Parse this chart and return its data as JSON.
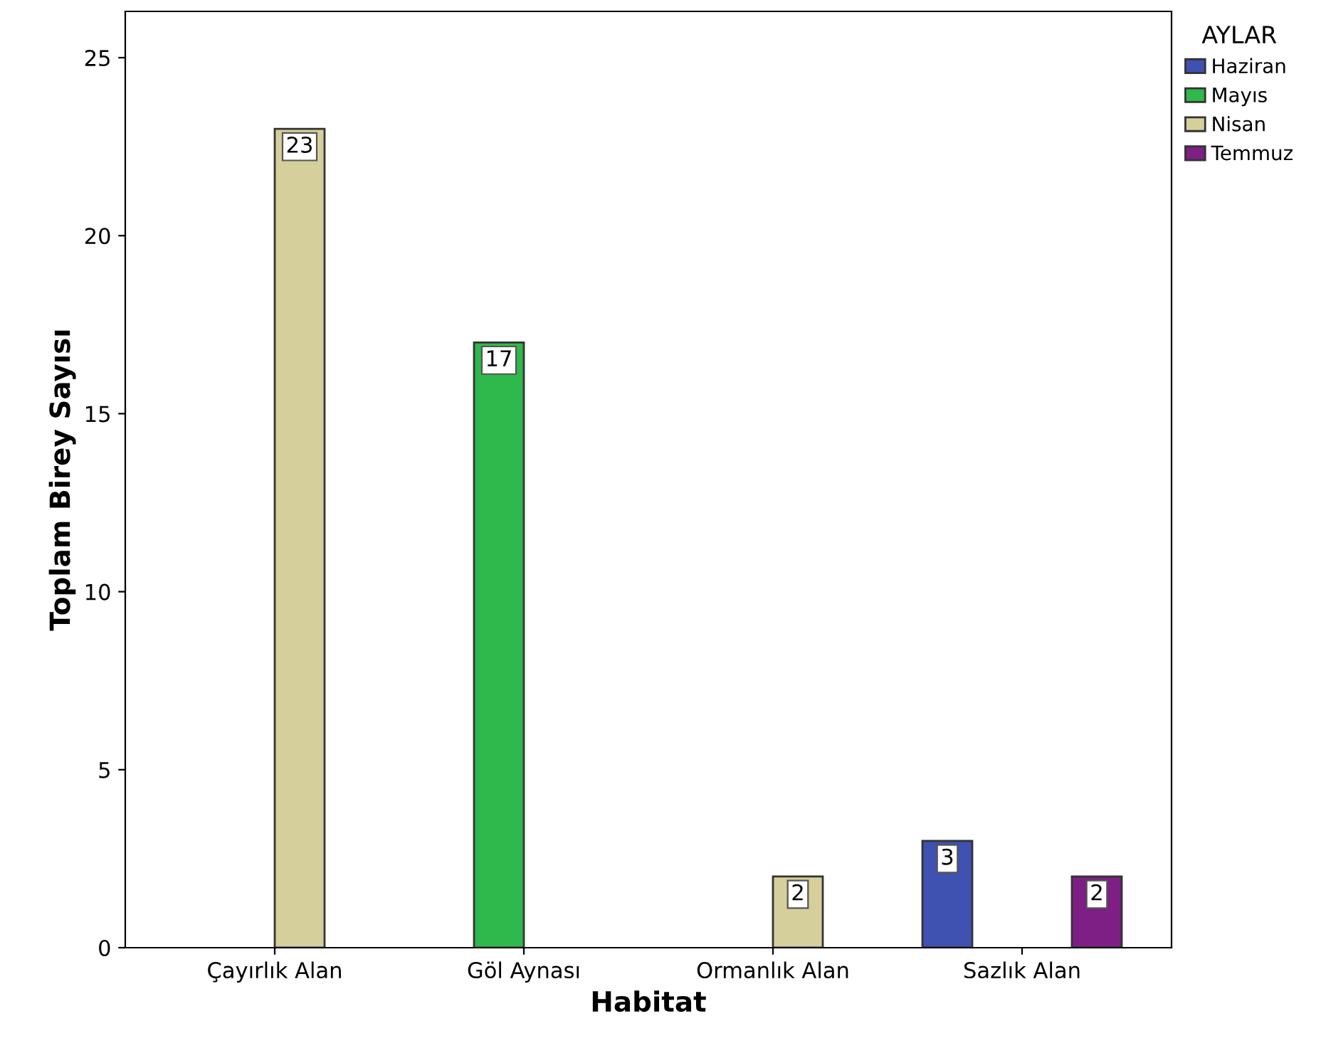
{
  "chart_data": {
    "type": "bar",
    "xlabel": "Habitat",
    "ylabel": "Toplam Birey Sayısı",
    "legend_title": "AYLAR",
    "categories": [
      "Çayırlık Alan",
      "Göl Aynası",
      "Ormanlık Alan",
      "Sazlık Alan"
    ],
    "series": [
      {
        "name": "Haziran",
        "color": "#3f51b1",
        "values": [
          null,
          null,
          null,
          3
        ]
      },
      {
        "name": "Mayıs",
        "color": "#2fb84b",
        "values": [
          null,
          17,
          null,
          null
        ]
      },
      {
        "name": "Nisan",
        "color": "#d5cf9b",
        "values": [
          23,
          null,
          2,
          null
        ]
      },
      {
        "name": "Temmuz",
        "color": "#7d1f84",
        "values": [
          null,
          null,
          null,
          2
        ]
      }
    ],
    "ylim": [
      0,
      26.3
    ],
    "yticks": [
      0,
      5,
      10,
      15,
      20,
      25
    ],
    "grid": false,
    "legend": "top right",
    "data_labels": true
  }
}
